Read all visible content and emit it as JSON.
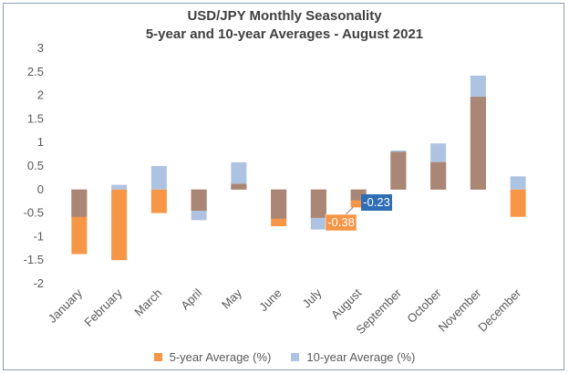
{
  "chart_data": {
    "type": "bar",
    "title": "USD/JPY Monthly Seasonality",
    "subtitle": "5-year and 10-year Averages - August 2021",
    "xlabel": "",
    "ylabel": "",
    "ylim": [
      -2,
      3
    ],
    "yticks": [
      "3",
      "2.5",
      "2",
      "1.5",
      "1",
      "0.5",
      "0",
      "-0.5",
      "-1",
      "-1.5",
      "-2"
    ],
    "ytick_values": [
      3,
      2.5,
      2,
      1.5,
      1,
      0.5,
      0,
      -0.5,
      -1,
      -1.5,
      -2
    ],
    "categories": [
      "January",
      "February",
      "March",
      "April",
      "May",
      "June",
      "July",
      "August",
      "September",
      "October",
      "November",
      "December"
    ],
    "series": [
      {
        "name": "5-year Average (%)",
        "color": "#f79646",
        "values": [
          -1.37,
          -1.5,
          -0.5,
          -0.45,
          0.12,
          -0.78,
          -0.6,
          -0.38,
          0.8,
          0.58,
          1.97,
          -0.58
        ]
      },
      {
        "name": "10-year Average (%)",
        "color": "#adc3e1",
        "values": [
          -0.58,
          0.1,
          0.5,
          -0.65,
          0.58,
          -0.62,
          -0.85,
          -0.23,
          0.83,
          0.98,
          2.42,
          0.28
        ]
      }
    ],
    "overlap_color": "#a98676",
    "grid": false,
    "legend": "bottom",
    "annotations": [
      {
        "text": "-0.38",
        "category": "August",
        "value": -0.38,
        "bg": "#f79646"
      },
      {
        "text": "-0.23",
        "category": "August",
        "value": -0.23,
        "bg": "#2f6db5"
      }
    ]
  },
  "legend": {
    "items": [
      {
        "label": "5-year Average (%)",
        "color": "#f79646"
      },
      {
        "label": "10-year Average (%)",
        "color": "#adc3e1"
      }
    ]
  }
}
